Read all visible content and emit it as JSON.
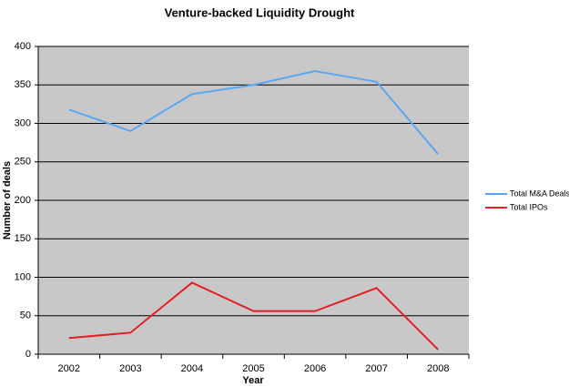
{
  "chart_data": {
    "type": "line",
    "title": "Venture-backed Liquidity Drought",
    "x_label": "Year",
    "y_label": "Number of deals",
    "categories": [
      "2002",
      "2003",
      "2004",
      "2005",
      "2006",
      "2007",
      "2008"
    ],
    "series": [
      {
        "name": "Total M&A Deals",
        "color": "#5aa8f2",
        "values": [
          318,
          290,
          338,
          350,
          368,
          354,
          260
        ]
      },
      {
        "name": "Total IPOs",
        "color": "#e41f26",
        "values": [
          21,
          28,
          93,
          56,
          56,
          86,
          6
        ]
      }
    ],
    "ylim": [
      0,
      400
    ],
    "yticks": [
      0,
      50,
      100,
      150,
      200,
      250,
      300,
      350,
      400
    ],
    "grid": true,
    "legend": "right"
  }
}
